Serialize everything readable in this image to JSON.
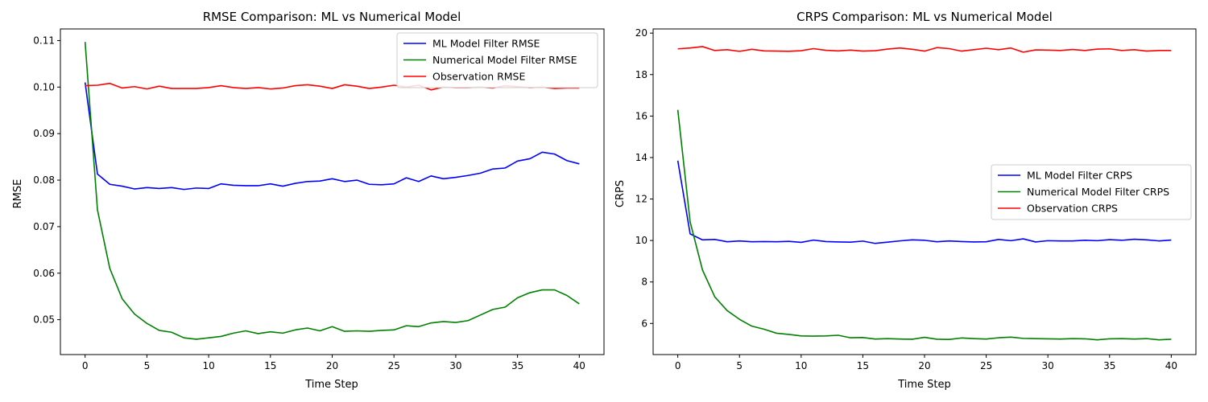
{
  "chart_data": [
    {
      "type": "line",
      "title": "RMSE Comparison: ML vs Numerical Model",
      "xlabel": "Time Step",
      "ylabel": "RMSE",
      "xlim": [
        -2,
        42
      ],
      "ylim": [
        0.0425,
        0.1125
      ],
      "xticks": [
        0,
        5,
        10,
        15,
        20,
        25,
        30,
        35,
        40
      ],
      "yticks": [
        0.05,
        0.06,
        0.07,
        0.08,
        0.09,
        0.1,
        0.11
      ],
      "ytick_labels": [
        "0.05",
        "0.06",
        "0.07",
        "0.08",
        "0.09",
        "0.10",
        "0.11"
      ],
      "legend_position": "top-right",
      "grid": false,
      "x": [
        0,
        1,
        2,
        3,
        4,
        5,
        6,
        7,
        8,
        9,
        10,
        11,
        12,
        13,
        14,
        15,
        16,
        17,
        18,
        19,
        20,
        21,
        22,
        23,
        24,
        25,
        26,
        27,
        28,
        29,
        30,
        31,
        32,
        33,
        34,
        35,
        36,
        37,
        38,
        39,
        40
      ],
      "series": [
        {
          "name": "ML Model Filter RMSE",
          "color": "#0000ff",
          "values": [
            0.101,
            0.0813,
            0.0791,
            0.0787,
            0.0781,
            0.0784,
            0.0782,
            0.0784,
            0.078,
            0.0783,
            0.0782,
            0.0792,
            0.0789,
            0.0788,
            0.0788,
            0.0792,
            0.0787,
            0.0793,
            0.0797,
            0.0798,
            0.0803,
            0.0797,
            0.08,
            0.0791,
            0.079,
            0.0792,
            0.0805,
            0.0797,
            0.0809,
            0.0803,
            0.0806,
            0.081,
            0.0815,
            0.0824,
            0.0826,
            0.0841,
            0.0846,
            0.086,
            0.0856,
            0.0842,
            0.0835
          ]
        },
        {
          "name": "Numerical Model Filter RMSE",
          "color": "#008000",
          "values": [
            0.1097,
            0.0736,
            0.061,
            0.0545,
            0.0512,
            0.0492,
            0.0477,
            0.0473,
            0.0461,
            0.0458,
            0.0461,
            0.0464,
            0.0471,
            0.0476,
            0.047,
            0.0474,
            0.0471,
            0.0478,
            0.0482,
            0.0476,
            0.0485,
            0.0475,
            0.0476,
            0.0475,
            0.0477,
            0.0478,
            0.0487,
            0.0485,
            0.0493,
            0.0496,
            0.0494,
            0.0498,
            0.051,
            0.0522,
            0.0527,
            0.0547,
            0.0558,
            0.0564,
            0.0564,
            0.0552,
            0.0534
          ]
        },
        {
          "name": "Observation RMSE",
          "color": "#ff0000",
          "values": [
            0.1003,
            0.1004,
            0.1008,
            0.0998,
            0.1001,
            0.0996,
            0.1002,
            0.0997,
            0.0997,
            0.0997,
            0.0999,
            0.1003,
            0.0999,
            0.0997,
            0.0999,
            0.0996,
            0.0998,
            0.1003,
            0.1005,
            0.1002,
            0.0997,
            0.1005,
            0.1002,
            0.0997,
            0.1,
            0.1004,
            0.1,
            0.1004,
            0.0994,
            0.1,
            0.0999,
            0.0999,
            0.1,
            0.0998,
            0.1003,
            0.1001,
            0.0999,
            0.1,
            0.0997,
            0.0998,
            0.0998
          ]
        }
      ]
    },
    {
      "type": "line",
      "title": "CRPS Comparison: ML vs Numerical Model",
      "xlabel": "Time Step",
      "ylabel": "CRPS",
      "xlim": [
        -2,
        42
      ],
      "ylim": [
        4.5,
        20.2
      ],
      "xticks": [
        0,
        5,
        10,
        15,
        20,
        25,
        30,
        35,
        40
      ],
      "yticks": [
        6,
        8,
        10,
        12,
        14,
        16,
        18,
        20
      ],
      "ytick_labels": [
        "6",
        "8",
        "10",
        "12",
        "14",
        "16",
        "18",
        "20"
      ],
      "legend_position": "center-right",
      "grid": false,
      "x": [
        0,
        1,
        2,
        3,
        4,
        5,
        6,
        7,
        8,
        9,
        10,
        11,
        12,
        13,
        14,
        15,
        16,
        17,
        18,
        19,
        20,
        21,
        22,
        23,
        24,
        25,
        26,
        27,
        28,
        29,
        30,
        31,
        32,
        33,
        34,
        35,
        36,
        37,
        38,
        39,
        40
      ],
      "series": [
        {
          "name": "ML Model Filter CRPS",
          "color": "#0000ff",
          "values": [
            13.85,
            10.32,
            10.03,
            10.05,
            9.94,
            9.98,
            9.94,
            9.95,
            9.94,
            9.96,
            9.91,
            10.02,
            9.95,
            9.93,
            9.92,
            9.97,
            9.86,
            9.92,
            9.98,
            10.03,
            10.01,
            9.94,
            9.98,
            9.95,
            9.93,
            9.94,
            10.05,
            9.99,
            10.08,
            9.93,
            9.99,
            9.98,
            9.98,
            10.01,
            9.99,
            10.04,
            10.01,
            10.06,
            10.03,
            9.98,
            10.02
          ]
        },
        {
          "name": "Numerical Model Filter CRPS",
          "color": "#008000",
          "values": [
            16.3,
            10.9,
            8.58,
            7.28,
            6.62,
            6.2,
            5.87,
            5.72,
            5.53,
            5.47,
            5.4,
            5.39,
            5.4,
            5.43,
            5.31,
            5.32,
            5.25,
            5.27,
            5.25,
            5.24,
            5.33,
            5.24,
            5.23,
            5.3,
            5.27,
            5.25,
            5.31,
            5.34,
            5.28,
            5.27,
            5.26,
            5.25,
            5.27,
            5.26,
            5.21,
            5.26,
            5.27,
            5.25,
            5.27,
            5.21,
            5.24
          ]
        },
        {
          "name": "Observation CRPS",
          "color": "#ff0000",
          "values": [
            19.24,
            19.28,
            19.35,
            19.16,
            19.2,
            19.12,
            19.22,
            19.14,
            19.13,
            19.12,
            19.15,
            19.25,
            19.17,
            19.14,
            19.18,
            19.13,
            19.15,
            19.23,
            19.28,
            19.22,
            19.13,
            19.3,
            19.25,
            19.13,
            19.2,
            19.27,
            19.2,
            19.28,
            19.08,
            19.19,
            19.18,
            19.16,
            19.21,
            19.16,
            19.23,
            19.24,
            19.16,
            19.2,
            19.13,
            19.16,
            19.16
          ]
        }
      ]
    }
  ]
}
